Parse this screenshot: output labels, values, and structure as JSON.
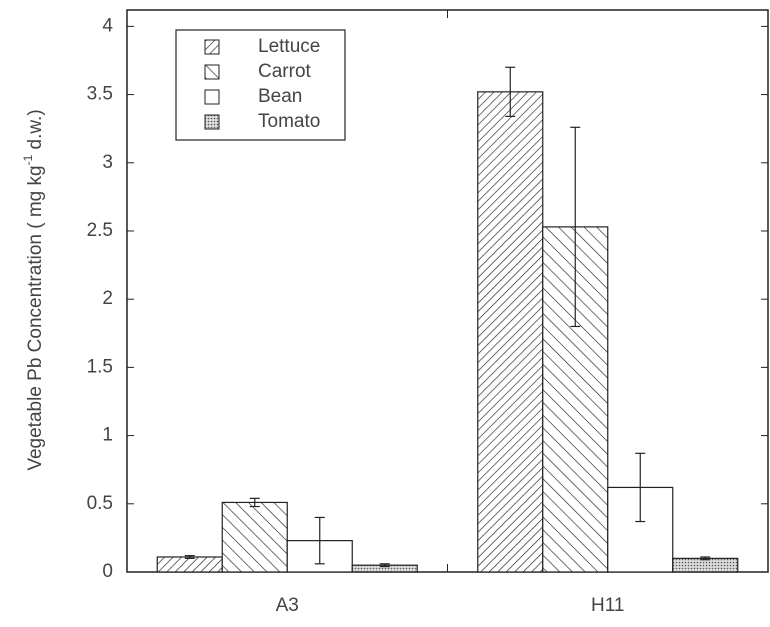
{
  "chart_data": {
    "type": "bar",
    "y_label": "Vegetable Pb Concentration ( mg kg",
    "y_label_sup": "-1",
    "y_label_end": " d.w.)",
    "categories": [
      "A3",
      "H11"
    ],
    "series": [
      {
        "name": "Lettuce",
        "color": "#ffffff",
        "pattern": "forward-hatch",
        "values": [
          0.11,
          3.52
        ],
        "errors": [
          0.01,
          0.18
        ]
      },
      {
        "name": "Carrot",
        "color": "#ffffff",
        "pattern": "back-hatch",
        "values": [
          0.51,
          2.53
        ],
        "errors": [
          0.03,
          0.73
        ]
      },
      {
        "name": "Bean",
        "color": "#ffffff",
        "pattern": "none",
        "values": [
          0.23,
          0.62
        ],
        "errors": [
          0.17,
          0.25
        ]
      },
      {
        "name": "Tomato",
        "color": "#ffffff",
        "pattern": "dots",
        "values": [
          0.05,
          0.1
        ],
        "errors": [
          0.01,
          0.01
        ]
      }
    ],
    "ylim": [
      0,
      4.12
    ],
    "yticks": [
      0,
      0.5,
      1,
      1.5,
      2,
      2.5,
      3,
      3.5,
      4
    ],
    "grid": false,
    "legend": "upper-left"
  }
}
